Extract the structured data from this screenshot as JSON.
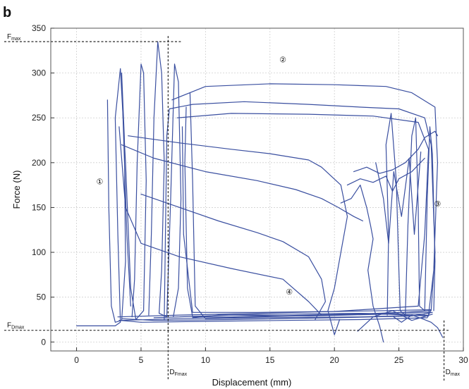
{
  "chart_data": {
    "type": "line",
    "panel_label": "b",
    "xlabel": "Displacement (mm)",
    "ylabel": "Force (N)",
    "xlim": [
      -2,
      30
    ],
    "ylim": [
      -10,
      350
    ],
    "xticks": [
      0,
      5,
      10,
      15,
      20,
      25,
      30
    ],
    "xtick_labels": [
      "0",
      "5",
      "10",
      "15",
      "20",
      "25",
      "30"
    ],
    "yticks": [
      0,
      50,
      100,
      150,
      200,
      250,
      300,
      350
    ],
    "ytick_labels": [
      "0",
      "50",
      "100",
      "150",
      "200",
      "250",
      "300",
      "350"
    ],
    "grid": true,
    "line_color": "#3a4fa0",
    "reference_lines": [
      {
        "axis": "y",
        "value": 335,
        "label_main": "F",
        "label_sub": "max"
      },
      {
        "axis": "y",
        "value": 13,
        "label_main": "F",
        "label_sub": "Dmax"
      },
      {
        "axis": "x",
        "value": 7.1,
        "label_main": "D",
        "label_sub": "Fmax"
      },
      {
        "axis": "x",
        "value": 28.5,
        "label_main": "D",
        "label_sub": "max"
      }
    ],
    "region_labels": [
      {
        "text": "①",
        "x": 1.8,
        "y": 180
      },
      {
        "text": "②",
        "x": 16,
        "y": 316
      },
      {
        "text": "③",
        "x": 28,
        "y": 155
      },
      {
        "text": "④",
        "x": 16.5,
        "y": 57
      }
    ],
    "series": [
      {
        "points": [
          [
            0,
            18
          ],
          [
            3,
            18
          ],
          [
            3.4,
            22
          ],
          [
            3.2,
            120
          ],
          [
            3,
            250
          ],
          [
            3.4,
            305
          ],
          [
            3.8,
            200
          ],
          [
            4.2,
            60
          ],
          [
            4.6,
            25
          ],
          [
            5.2,
            35
          ],
          [
            5.4,
            180
          ],
          [
            5.2,
            300
          ],
          [
            5.0,
            310
          ],
          [
            4.7,
            200
          ],
          [
            4.5,
            70
          ],
          [
            4.3,
            28
          ]
        ]
      },
      {
        "points": [
          [
            2.4,
            270
          ],
          [
            2.5,
            150
          ],
          [
            2.7,
            40
          ],
          [
            3,
            22
          ],
          [
            3.5,
            24
          ],
          [
            3.8,
            90
          ],
          [
            3.7,
            230
          ],
          [
            3.5,
            300
          ],
          [
            3.6,
            250
          ],
          [
            3.9,
            120
          ],
          [
            4.2,
            40
          ]
        ]
      },
      {
        "points": [
          [
            5.6,
            30
          ],
          [
            5.8,
            120
          ],
          [
            6.0,
            250
          ],
          [
            6.3,
            335
          ],
          [
            6.6,
            300
          ],
          [
            6.8,
            200
          ],
          [
            6.6,
            80
          ],
          [
            6.4,
            32
          ],
          [
            7.0,
            28
          ],
          [
            7.3,
            160
          ],
          [
            7.6,
            310
          ],
          [
            7.9,
            290
          ],
          [
            8.1,
            160
          ],
          [
            7.9,
            60
          ],
          [
            7.5,
            28
          ]
        ]
      },
      {
        "points": [
          [
            6.8,
            25
          ],
          [
            7.0,
            230
          ],
          [
            7.2,
            260
          ],
          [
            9,
            265
          ],
          [
            13,
            268
          ],
          [
            18,
            265
          ],
          [
            22,
            262
          ],
          [
            25,
            260
          ],
          [
            27,
            250
          ],
          [
            27.5,
            220
          ],
          [
            27.8,
            100
          ],
          [
            27.5,
            35
          ],
          [
            24,
            32
          ],
          [
            18,
            30
          ],
          [
            12,
            28
          ],
          [
            9,
            28
          ],
          [
            8.6,
            60
          ],
          [
            8.4,
            200
          ],
          [
            8.5,
            262
          ]
        ]
      },
      {
        "points": [
          [
            7.4,
            270
          ],
          [
            10,
            285
          ],
          [
            15,
            288
          ],
          [
            20,
            287
          ],
          [
            24,
            285
          ],
          [
            26,
            278
          ],
          [
            27.8,
            262
          ],
          [
            28.0,
            200
          ],
          [
            27.7,
            80
          ],
          [
            27.3,
            30
          ],
          [
            22,
            28
          ],
          [
            15,
            27
          ],
          [
            10,
            26
          ],
          [
            9.2,
            40
          ],
          [
            9.0,
            180
          ],
          [
            8.8,
            278
          ]
        ]
      },
      {
        "points": [
          [
            7.8,
            250
          ],
          [
            12,
            255
          ],
          [
            18,
            254
          ],
          [
            23,
            252
          ],
          [
            26.5,
            245
          ],
          [
            27.3,
            215
          ],
          [
            27.0,
            120
          ],
          [
            26.5,
            40
          ],
          [
            20,
            34
          ],
          [
            14,
            33
          ],
          [
            9,
            33
          ],
          [
            8.3,
            120
          ],
          [
            8.2,
            240
          ]
        ]
      },
      {
        "points": [
          [
            4,
            230
          ],
          [
            8,
            222
          ],
          [
            12,
            215
          ],
          [
            15,
            210
          ],
          [
            18,
            203
          ],
          [
            19,
            195
          ],
          [
            20.5,
            175
          ],
          [
            21,
            140
          ],
          [
            20.5,
            100
          ],
          [
            20,
            60
          ],
          [
            19.5,
            35
          ],
          [
            20,
            8
          ],
          [
            20.4,
            25
          ]
        ]
      },
      {
        "points": [
          [
            5,
            165
          ],
          [
            8,
            150
          ],
          [
            11,
            135
          ],
          [
            14,
            122
          ],
          [
            16,
            112
          ],
          [
            18,
            95
          ],
          [
            19,
            70
          ],
          [
            19.3,
            45
          ],
          [
            18.5,
            25
          ]
        ]
      },
      {
        "points": [
          [
            3.3,
            240
          ],
          [
            3.8,
            150
          ],
          [
            5,
            110
          ],
          [
            8,
            95
          ],
          [
            12,
            82
          ],
          [
            16,
            70
          ],
          [
            18,
            45
          ],
          [
            19,
            30
          ]
        ]
      },
      {
        "points": [
          [
            3.5,
            220
          ],
          [
            6,
            205
          ],
          [
            10,
            190
          ],
          [
            14,
            180
          ],
          [
            17,
            170
          ],
          [
            19,
            160
          ],
          [
            20.3,
            150
          ],
          [
            21.5,
            140
          ],
          [
            22.2,
            135
          ]
        ]
      },
      {
        "points": [
          [
            20.5,
            155
          ],
          [
            21.3,
            160
          ],
          [
            22,
            175
          ],
          [
            22.5,
            150
          ],
          [
            22.8,
            130
          ],
          [
            23,
            115
          ],
          [
            22.6,
            80
          ],
          [
            23,
            40
          ],
          [
            23.5,
            18
          ],
          [
            23.8,
            0
          ]
        ]
      },
      {
        "points": [
          [
            24.1,
            30
          ],
          [
            24.2,
            120
          ],
          [
            24.0,
            220
          ],
          [
            24.4,
            255
          ],
          [
            24.8,
            180
          ],
          [
            25,
            80
          ],
          [
            25.1,
            35
          ],
          [
            25.5,
            30
          ],
          [
            25.7,
            130
          ],
          [
            26,
            230
          ],
          [
            26.3,
            250
          ],
          [
            26.5,
            150
          ],
          [
            26.6,
            40
          ],
          [
            27.0,
            35
          ],
          [
            27.2,
            160
          ],
          [
            27.4,
            240
          ],
          [
            27.6,
            210
          ],
          [
            27.8,
            90
          ],
          [
            27.7,
            35
          ]
        ]
      },
      {
        "points": [
          [
            21.5,
            190
          ],
          [
            22.5,
            195
          ],
          [
            23.5,
            188
          ],
          [
            24.5,
            192
          ],
          [
            25.5,
            200
          ],
          [
            26.5,
            215
          ],
          [
            27,
            228
          ],
          [
            27.8,
            235
          ],
          [
            28,
            230
          ]
        ]
      },
      {
        "points": [
          [
            21,
            175
          ],
          [
            22,
            182
          ],
          [
            23,
            178
          ],
          [
            24,
            185
          ],
          [
            24.5,
            168
          ],
          [
            25,
            182
          ],
          [
            26,
            190
          ],
          [
            27,
            205
          ]
        ]
      },
      {
        "points": [
          [
            23.2,
            200
          ],
          [
            23.8,
            160
          ],
          [
            24.2,
            110
          ],
          [
            24.6,
            190
          ],
          [
            25.2,
            140
          ],
          [
            25.8,
            205
          ],
          [
            26.2,
            120
          ],
          [
            26.7,
            212
          ]
        ]
      },
      {
        "points": [
          [
            3.2,
            28
          ],
          [
            8,
            30
          ],
          [
            14,
            32
          ],
          [
            20,
            34
          ],
          [
            24,
            35
          ],
          [
            27.5,
            36
          ],
          [
            27.2,
            27
          ],
          [
            22,
            25
          ],
          [
            16,
            24
          ],
          [
            10,
            23
          ],
          [
            5,
            22
          ],
          [
            3.4,
            24
          ]
        ]
      },
      {
        "points": [
          [
            3.3,
            24
          ],
          [
            8,
            26
          ],
          [
            14,
            28
          ],
          [
            20,
            30
          ],
          [
            25,
            33
          ],
          [
            27.6,
            33
          ],
          [
            26,
            29
          ],
          [
            20,
            27
          ],
          [
            12,
            25
          ],
          [
            6,
            24
          ],
          [
            3.5,
            26
          ]
        ]
      },
      {
        "points": [
          [
            9,
            27
          ],
          [
            11,
            30
          ],
          [
            16,
            31
          ],
          [
            22,
            32
          ],
          [
            27,
            31
          ]
        ]
      },
      {
        "points": [
          [
            6,
            27
          ],
          [
            12,
            30
          ],
          [
            18,
            29
          ],
          [
            24,
            31
          ],
          [
            27.3,
            29
          ]
        ]
      },
      {
        "points": [
          [
            24.6,
            28
          ],
          [
            25.2,
            22
          ],
          [
            26,
            30
          ],
          [
            26.8,
            26
          ],
          [
            27.5,
            22
          ],
          [
            28,
            16
          ],
          [
            28.4,
            5
          ]
        ]
      },
      {
        "points": [
          [
            21.8,
            12
          ],
          [
            23,
            28
          ],
          [
            24.5,
            35
          ],
          [
            26,
            24
          ],
          [
            27.6,
            31
          ]
        ]
      }
    ]
  }
}
